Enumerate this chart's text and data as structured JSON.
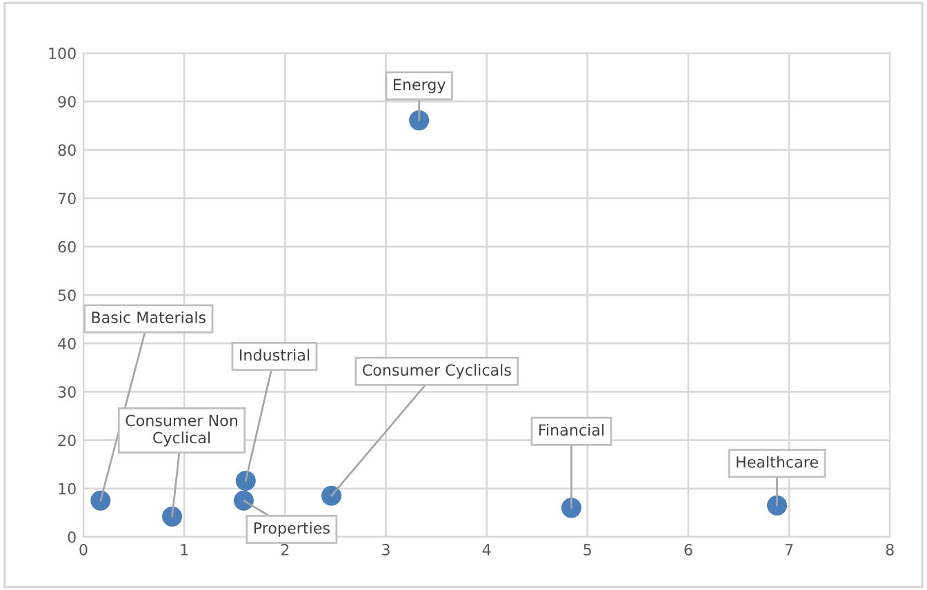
{
  "chart_data": {
    "type": "scatter",
    "x": [
      0.17,
      0.88,
      1.61,
      1.59,
      2.46,
      3.33,
      4.84,
      6.88
    ],
    "series": [
      {
        "color": "#4a7ebb",
        "values": [
          7.5,
          4.2,
          11.6,
          7.5,
          8.5,
          86.1,
          6.0,
          6.5
        ]
      }
    ],
    "annotations": [
      {
        "text": "Basic Materials",
        "x": 0.17,
        "y": 7.5
      },
      {
        "text": "Consumer Non Cyclical",
        "x": 0.88,
        "y": 4.2
      },
      {
        "text": "Industrial",
        "x": 1.61,
        "y": 11.6
      },
      {
        "text": "Properties",
        "x": 1.59,
        "y": 7.5
      },
      {
        "text": "Consumer Cyclicals",
        "x": 2.46,
        "y": 8.5
      },
      {
        "text": "Energy",
        "x": 3.33,
        "y": 86.1
      },
      {
        "text": "Financial",
        "x": 4.84,
        "y": 6.0
      },
      {
        "text": "Healthcare",
        "x": 6.88,
        "y": 6.5
      }
    ],
    "xlim": [
      0,
      8
    ],
    "xticks": [
      0,
      1,
      2,
      3,
      4,
      5,
      6,
      7,
      8
    ],
    "ylim": [
      0,
      100
    ],
    "yticks": [
      0,
      10,
      20,
      30,
      40,
      50,
      60,
      70,
      80,
      90,
      100
    ],
    "grid": true,
    "marker": "circle"
  }
}
